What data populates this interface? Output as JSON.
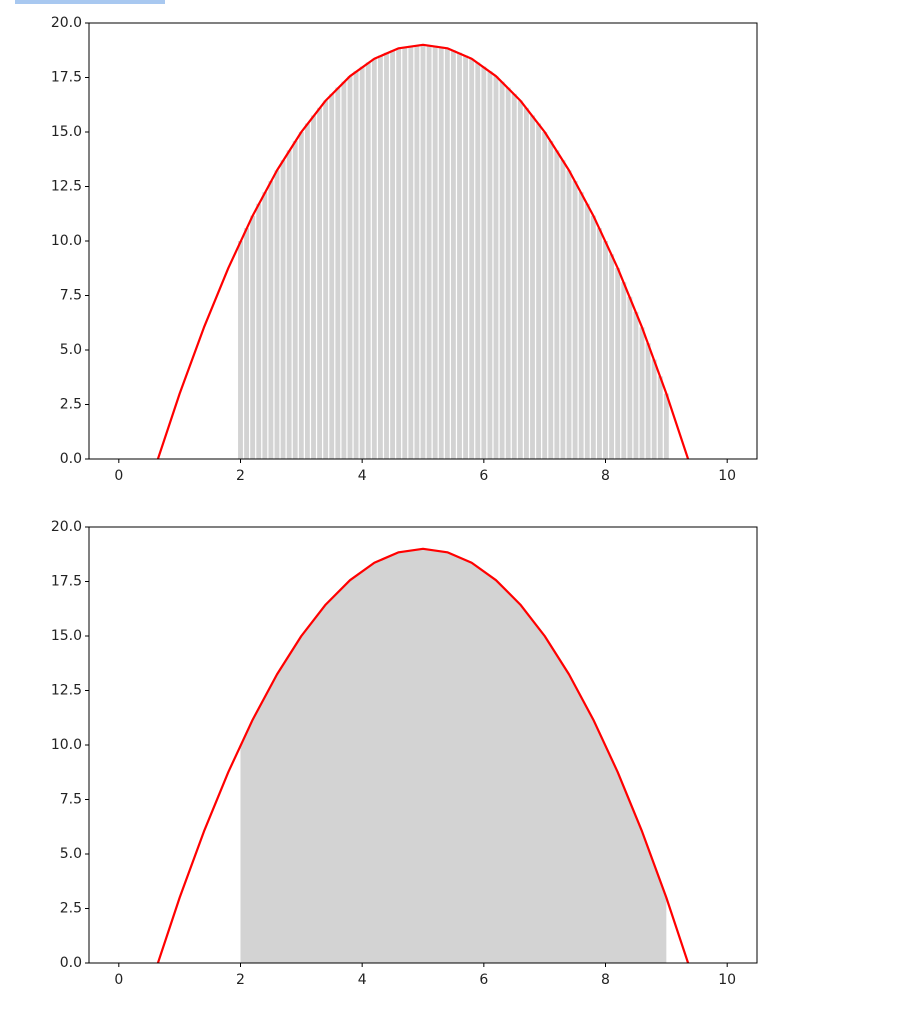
{
  "chart_data": [
    {
      "type": "bar",
      "x": [
        2,
        2.1,
        2.2,
        2.3,
        2.4,
        2.5,
        2.6,
        2.7,
        2.8,
        2.9,
        3,
        3.1,
        3.2,
        3.3,
        3.4,
        3.5,
        3.6,
        3.7,
        3.8,
        3.9,
        4,
        4.1,
        4.2,
        4.3,
        4.4,
        4.5,
        4.6,
        4.7,
        4.8,
        4.9,
        5,
        5.1,
        5.2,
        5.3,
        5.4,
        5.5,
        5.6,
        5.7,
        5.8,
        5.9,
        6,
        6.1,
        6.2,
        6.3,
        6.4,
        6.5,
        6.6,
        6.7,
        6.8,
        6.9,
        7,
        7.1,
        7.2,
        7.3,
        7.4,
        7.5,
        7.6,
        7.7,
        7.8,
        7.9,
        8,
        8.1,
        8.2,
        8.3,
        8.4,
        8.5,
        8.6,
        8.7,
        8.8,
        8.9,
        9
      ],
      "values": [
        10,
        10.59,
        11.16,
        11.71,
        12.24,
        12.75,
        13.24,
        13.71,
        14.16,
        14.59,
        15,
        15.39,
        15.76,
        16.11,
        16.44,
        16.75,
        17.04,
        17.31,
        17.56,
        17.79,
        18,
        18.19,
        18.36,
        18.51,
        18.64,
        18.75,
        18.84,
        18.91,
        18.96,
        18.99,
        19,
        18.99,
        18.96,
        18.91,
        18.84,
        18.75,
        18.64,
        18.51,
        18.36,
        18.19,
        18,
        17.79,
        17.56,
        17.31,
        17.04,
        16.75,
        16.44,
        16.11,
        15.76,
        15.39,
        15,
        14.59,
        14.16,
        13.71,
        13.24,
        12.75,
        12.24,
        11.71,
        11.16,
        10.59,
        10,
        9.39,
        8.76,
        8.11,
        7.44,
        6.75,
        6.04,
        5.31,
        4.56,
        3.79,
        3
      ],
      "color": "#d3d3d3",
      "curve": {
        "x": [
          0.6,
          1,
          1.4,
          1.8,
          2.2,
          2.6,
          3,
          3.4,
          3.8,
          4.2,
          4.6,
          5,
          5.4,
          5.8,
          6.2,
          6.6,
          7,
          7.4,
          7.8,
          8.2,
          8.6,
          9,
          9.4
        ],
        "values": [
          -0.36,
          3,
          6.04,
          8.76,
          11.16,
          13.24,
          15,
          16.44,
          17.56,
          18.36,
          18.84,
          19,
          18.84,
          18.36,
          17.56,
          16.44,
          15,
          13.24,
          11.16,
          8.76,
          6.04,
          3,
          -0.36
        ],
        "color": "#ff0000"
      },
      "xlim": [
        -0.49,
        10.49
      ],
      "ylim": [
        0,
        20
      ],
      "xticks": [
        0,
        2,
        4,
        6,
        8,
        10
      ],
      "yticks": [
        {
          "value": 0,
          "label": "0.0"
        },
        {
          "value": 2.5,
          "label": "2.5"
        },
        {
          "value": 5,
          "label": "5.0"
        },
        {
          "value": 7.5,
          "label": "7.5"
        },
        {
          "value": 10,
          "label": "10.0"
        },
        {
          "value": 12.5,
          "label": "12.5"
        },
        {
          "value": 15,
          "label": "15.0"
        },
        {
          "value": 17.5,
          "label": "17.5"
        },
        {
          "value": 20,
          "label": "20.0"
        }
      ]
    },
    {
      "type": "area",
      "x": [
        2,
        2.25,
        2.5,
        2.75,
        3,
        3.25,
        3.5,
        3.75,
        4,
        4.25,
        4.5,
        4.75,
        5,
        5.25,
        5.5,
        5.75,
        6,
        6.25,
        6.5,
        6.75,
        7,
        7.25,
        7.5,
        7.75,
        8,
        8.25,
        8.5,
        8.75,
        9
      ],
      "values": [
        10,
        11.4375,
        12.75,
        13.9375,
        15,
        15.9375,
        16.75,
        17.4375,
        18,
        18.4375,
        18.75,
        18.9375,
        19,
        18.9375,
        18.75,
        18.4375,
        18,
        17.4375,
        16.75,
        15.9375,
        15,
        13.9375,
        12.75,
        11.4375,
        10,
        8.4375,
        6.75,
        4.9375,
        3
      ],
      "color": "#d3d3d3",
      "curve": {
        "x": [
          0.6,
          1,
          1.4,
          1.8,
          2.2,
          2.6,
          3,
          3.4,
          3.8,
          4.2,
          4.6,
          5,
          5.4,
          5.8,
          6.2,
          6.6,
          7,
          7.4,
          7.8,
          8.2,
          8.6,
          9,
          9.4
        ],
        "values": [
          -0.36,
          3,
          6.04,
          8.76,
          11.16,
          13.24,
          15,
          16.44,
          17.56,
          18.36,
          18.84,
          19,
          18.84,
          18.36,
          17.56,
          16.44,
          15,
          13.24,
          11.16,
          8.76,
          6.04,
          3,
          -0.36
        ],
        "color": "#ff0000"
      },
      "xlim": [
        -0.49,
        10.49
      ],
      "ylim": [
        0,
        20
      ],
      "xticks": [
        0,
        2,
        4,
        6,
        8,
        10
      ],
      "yticks": [
        {
          "value": 0,
          "label": "0.0"
        },
        {
          "value": 2.5,
          "label": "2.5"
        },
        {
          "value": 5,
          "label": "5.0"
        },
        {
          "value": 7.5,
          "label": "7.5"
        },
        {
          "value": 10,
          "label": "10.0"
        },
        {
          "value": 12.5,
          "label": "12.5"
        },
        {
          "value": 15,
          "label": "15.0"
        },
        {
          "value": 17.5,
          "label": "17.5"
        },
        {
          "value": 20,
          "label": "20.0"
        }
      ]
    }
  ]
}
